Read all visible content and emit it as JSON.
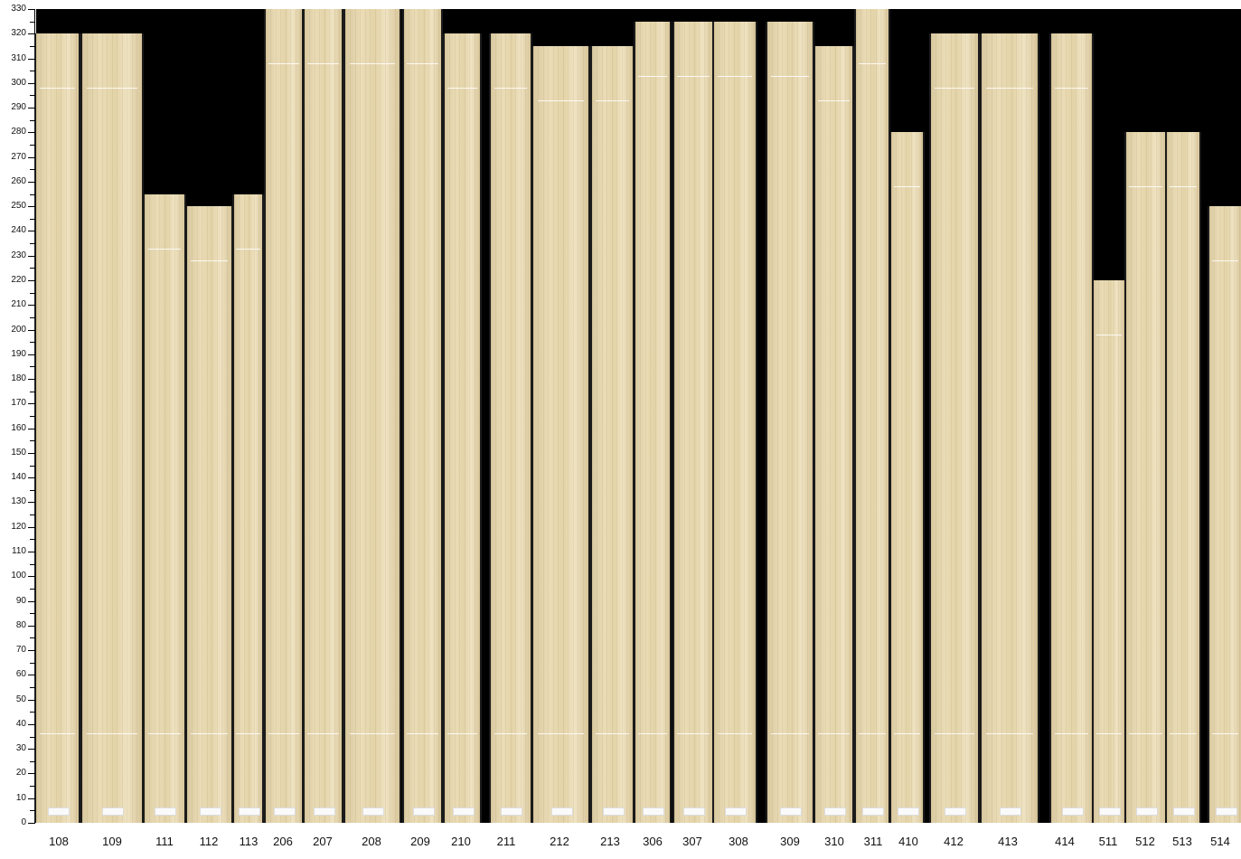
{
  "chart_data": {
    "type": "bar",
    "ylim": [
      0,
      330
    ],
    "y_tick_step": 10,
    "grid": false,
    "background_color": "#000000",
    "bar_color": "#e6d8b2",
    "categories": [
      "108",
      "109",
      "111",
      "112",
      "113",
      "206",
      "207",
      "208",
      "209",
      "210",
      "211",
      "212",
      "213",
      "306",
      "307",
      "308",
      "309",
      "310",
      "311",
      "410",
      "412",
      "413",
      "414",
      "511",
      "512",
      "513",
      "514"
    ],
    "values": [
      320,
      320,
      255,
      250,
      255,
      330,
      330,
      330,
      330,
      320,
      320,
      315,
      315,
      325,
      325,
      325,
      325,
      315,
      330,
      280,
      320,
      320,
      320,
      220,
      280,
      280,
      250
    ]
  }
}
